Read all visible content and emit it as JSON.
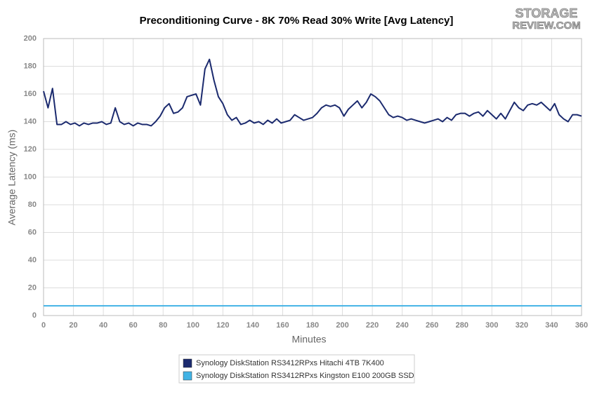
{
  "chart_data": {
    "type": "line",
    "title": "Preconditioning Curve - 8K 70% Read 30% Write [Avg Latency]",
    "logo": [
      "STORAGE",
      "REVIEW.COM"
    ],
    "xlabel": "Minutes",
    "ylabel": "Average Latency (ms)",
    "x": [
      0,
      3,
      6,
      9,
      12,
      15,
      18,
      21,
      24,
      27,
      30,
      33,
      36,
      39,
      42,
      45,
      48,
      51,
      54,
      57,
      60,
      63,
      66,
      69,
      72,
      75,
      78,
      81,
      84,
      87,
      90,
      93,
      96,
      99,
      102,
      105,
      108,
      111,
      114,
      117,
      120,
      123,
      126,
      129,
      132,
      135,
      138,
      141,
      144,
      147,
      150,
      153,
      156,
      159,
      162,
      165,
      168,
      171,
      174,
      177,
      180,
      183,
      186,
      189,
      192,
      195,
      198,
      201,
      204,
      207,
      210,
      213,
      216,
      219,
      222,
      225,
      228,
      231,
      234,
      237,
      240,
      243,
      246,
      249,
      252,
      255,
      258,
      261,
      264,
      267,
      270,
      273,
      276,
      279,
      282,
      285,
      288,
      291,
      294,
      297,
      300,
      303,
      306,
      309,
      312,
      315,
      318,
      321,
      324,
      327,
      330,
      333,
      336,
      339,
      342,
      345,
      348,
      351,
      354,
      357,
      360
    ],
    "series": [
      {
        "name": "Synology DiskStation RS3412RPxs Hitachi 4TB 7K400",
        "color": "#1b2a6e",
        "values": [
          162,
          150,
          164,
          138,
          138,
          140,
          138,
          139,
          137,
          139,
          138,
          139,
          139,
          140,
          138,
          139,
          150,
          140,
          138,
          139,
          137,
          139,
          138,
          138,
          137,
          140,
          144,
          150,
          153,
          146,
          147,
          150,
          158,
          159,
          160,
          152,
          178,
          185,
          170,
          158,
          153,
          145,
          141,
          143,
          138,
          139,
          141,
          139,
          140,
          138,
          141,
          139,
          142,
          139,
          140,
          141,
          145,
          143,
          141,
          142,
          143,
          146,
          150,
          152,
          151,
          152,
          150,
          144,
          149,
          152,
          155,
          150,
          154,
          160,
          158,
          155,
          150,
          145,
          143,
          144,
          143,
          141,
          142,
          141,
          140,
          139,
          140,
          141,
          142,
          140,
          143,
          141,
          145,
          146,
          146,
          144,
          146,
          147,
          144,
          148,
          145,
          142,
          146,
          142,
          148,
          154,
          150,
          148,
          152,
          153,
          152,
          154,
          151,
          148,
          153,
          145,
          142,
          140,
          145,
          145,
          144
        ]
      },
      {
        "name": "Synology DiskStation RS3412RPxs Kingston E100 200GB SSD",
        "color": "#42b3e5",
        "values": [
          7,
          7,
          7,
          7,
          7,
          7,
          7,
          7,
          7,
          7,
          7,
          7,
          7,
          7,
          7,
          7,
          7,
          7,
          7,
          7,
          7,
          7,
          7,
          7,
          7,
          7,
          7,
          7,
          7,
          7,
          7,
          7,
          7,
          7,
          7,
          7,
          7,
          7,
          7,
          7,
          7,
          7,
          7,
          7,
          7,
          7,
          7,
          7,
          7,
          7,
          7,
          7,
          7,
          7,
          7,
          7,
          7,
          7,
          7,
          7,
          7,
          7,
          7,
          7,
          7,
          7,
          7,
          7,
          7,
          7,
          7,
          7,
          7,
          7,
          7,
          7,
          7,
          7,
          7,
          7,
          7,
          7,
          7,
          7,
          7,
          7,
          7,
          7,
          7,
          7,
          7,
          7,
          7,
          7,
          7,
          7,
          7,
          7,
          7,
          7,
          7,
          7,
          7,
          7,
          7,
          7,
          7,
          7,
          7,
          7,
          7,
          7,
          7,
          7,
          7,
          7,
          7,
          7,
          7,
          7,
          7
        ]
      }
    ],
    "xlim": [
      0,
      360
    ],
    "xticks": [
      0,
      20,
      40,
      60,
      80,
      100,
      120,
      140,
      160,
      180,
      200,
      220,
      240,
      260,
      280,
      300,
      320,
      340,
      360
    ],
    "ylim": [
      0,
      200
    ],
    "yticks": [
      0,
      20,
      40,
      60,
      80,
      100,
      120,
      140,
      160,
      180,
      200
    ],
    "grid": true,
    "legend": "bottom"
  }
}
